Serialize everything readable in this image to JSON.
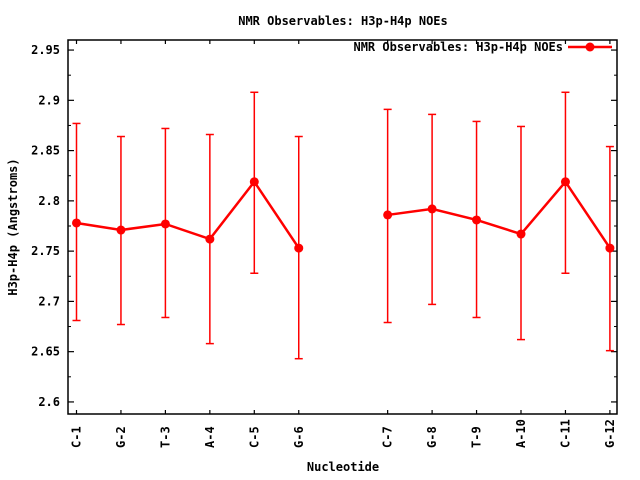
{
  "chart_data": {
    "type": "line",
    "title": "NMR Observables: H3p-H4p NOEs",
    "xlabel": "Nucleotide",
    "ylabel": "H3p-H4p (Angstroms)",
    "legend": {
      "label": "NMR Observables: H3p-H4p NOEs",
      "position": "top-right-inside"
    },
    "colors": {
      "series": "#ff0000",
      "axis": "#000000",
      "background": "#ffffff"
    },
    "grid": false,
    "ylim": [
      2.588,
      2.96
    ],
    "yticks": {
      "values": [
        2.6,
        2.65,
        2.7,
        2.75,
        2.8,
        2.85,
        2.9,
        2.95
      ],
      "labels": [
        "2.6",
        "2.65",
        "2.7",
        "2.75",
        "2.8",
        "2.85",
        "2.9",
        "2.95"
      ],
      "minor_values": [
        2.625,
        2.675,
        2.725,
        2.775,
        2.825,
        2.875,
        2.925
      ]
    },
    "x_slot_count": 13,
    "categories": [
      "C-1",
      "G-2",
      "T-3",
      "A-4",
      "C-5",
      "G-6",
      "C-7",
      "G-8",
      "T-9",
      "A-10",
      "C-11",
      "G-12"
    ],
    "series": [
      {
        "name": "NMR Observables: H3p-H4p NOEs",
        "color": "#ff0000",
        "points": [
          {
            "label": "C-1",
            "slot": 0,
            "value": 2.778,
            "err_low": 2.681,
            "err_high": 2.877
          },
          {
            "label": "G-2",
            "slot": 1,
            "value": 2.771,
            "err_low": 2.677,
            "err_high": 2.864
          },
          {
            "label": "T-3",
            "slot": 2,
            "value": 2.777,
            "err_low": 2.684,
            "err_high": 2.872
          },
          {
            "label": "A-4",
            "slot": 3,
            "value": 2.762,
            "err_low": 2.658,
            "err_high": 2.866
          },
          {
            "label": "C-5",
            "slot": 4,
            "value": 2.819,
            "err_low": 2.728,
            "err_high": 2.908
          },
          {
            "label": "G-6",
            "slot": 5,
            "value": 2.753,
            "err_low": 2.643,
            "err_high": 2.864
          },
          {
            "label": "C-7",
            "slot": 7,
            "value": 2.786,
            "err_low": 2.679,
            "err_high": 2.891
          },
          {
            "label": "G-8",
            "slot": 8,
            "value": 2.792,
            "err_low": 2.697,
            "err_high": 2.886
          },
          {
            "label": "T-9",
            "slot": 9,
            "value": 2.781,
            "err_low": 2.684,
            "err_high": 2.879
          },
          {
            "label": "A-10",
            "slot": 10,
            "value": 2.767,
            "err_low": 2.662,
            "err_high": 2.874
          },
          {
            "label": "C-11",
            "slot": 11,
            "value": 2.819,
            "err_low": 2.728,
            "err_high": 2.908
          },
          {
            "label": "G-12",
            "slot": 12,
            "value": 2.753,
            "err_low": 2.651,
            "err_high": 2.854
          }
        ]
      }
    ]
  }
}
